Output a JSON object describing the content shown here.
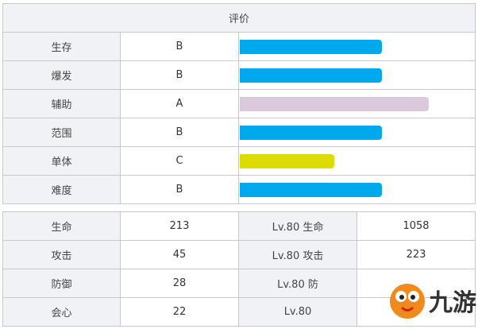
{
  "eval": {
    "header": "评价",
    "rows": [
      {
        "label": "生存",
        "grade": "B",
        "fill": 0.6,
        "color": "#00a8ec"
      },
      {
        "label": "爆发",
        "grade": "B",
        "fill": 0.6,
        "color": "#00a8ec"
      },
      {
        "label": "辅助",
        "grade": "A",
        "fill": 0.8,
        "color": "#d9c9da"
      },
      {
        "label": "范围",
        "grade": "B",
        "fill": 0.6,
        "color": "#00a8ec"
      },
      {
        "label": "单体",
        "grade": "C",
        "fill": 0.4,
        "color": "#dcdc00"
      },
      {
        "label": "难度",
        "grade": "B",
        "fill": 0.6,
        "color": "#00a8ec"
      }
    ]
  },
  "stats": {
    "rows": [
      {
        "label": "生命",
        "value": "213",
        "lv_label": "Lv.80 生命",
        "lv_value": "1058"
      },
      {
        "label": "攻击",
        "value": "45",
        "lv_label": "Lv.80 攻击",
        "lv_value": "223"
      },
      {
        "label": "防御",
        "value": "28",
        "lv_label": "Lv.80 防",
        "lv_value": ""
      },
      {
        "label": "会心",
        "value": "22",
        "lv_label": "Lv.80",
        "lv_value": ""
      }
    ]
  },
  "watermark": {
    "text": "九游",
    "icon": "mascot-logo-icon",
    "color": "#f08a1c"
  }
}
